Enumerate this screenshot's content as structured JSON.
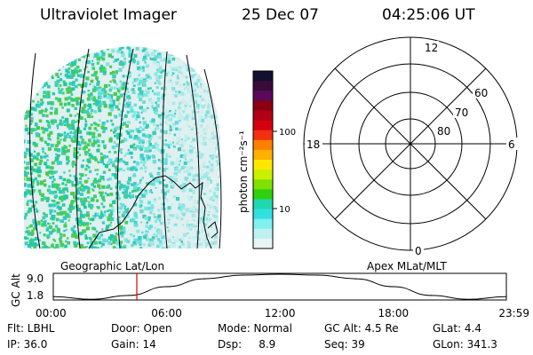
{
  "header": {
    "title": "Ultraviolet Imager",
    "date": "25 Dec 07",
    "time": "04:25:06 UT"
  },
  "colorbar": {
    "unit_label": "photon cm⁻²s⁻¹",
    "ticks": [
      "100",
      "10"
    ],
    "colors": [
      "#101030",
      "#3a0a3a",
      "#5a0a5a",
      "#8a0010",
      "#b00018",
      "#d40010",
      "#f03010",
      "#ff8000",
      "#ffb000",
      "#ffe800",
      "#c8f000",
      "#80e000",
      "#30d010",
      "#20d8b0",
      "#30e0e0",
      "#80f0f0",
      "#c0f0f0",
      "#e8f4f4"
    ]
  },
  "polar_plot": {
    "mlt_labels": {
      "top": "12",
      "left": "18",
      "right": "6",
      "bottom": "0"
    },
    "lat_labels": [
      "60",
      "70",
      "80"
    ]
  },
  "altitude_panel": {
    "left_label": "Geographic Lat/Lon",
    "right_label": "Apex MLat/MLT",
    "ylabel": "GC Alt",
    "yticks": [
      "9.0",
      "1.8"
    ],
    "xticks": [
      "00:00",
      "06:00",
      "12:00",
      "18:00",
      "23:59"
    ]
  },
  "chart_data": {
    "type": "line",
    "title": "",
    "xlabel": "",
    "ylabel": "GC Alt",
    "x": [
      0,
      2,
      4,
      6,
      8,
      10,
      12,
      14,
      16,
      18,
      20,
      22,
      23.98
    ],
    "values": [
      1.9,
      1.0,
      2.3,
      5.2,
      7.8,
      9.0,
      9.3,
      9.0,
      7.8,
      5.2,
      2.3,
      1.0,
      1.9
    ],
    "current_time_marker": 4.42,
    "xlim": [
      0,
      23.98
    ],
    "ylim": [
      0.8,
      9.6
    ]
  },
  "info": {
    "flt": "Flt: LBHL",
    "door": "Door: Open",
    "mode": "Mode: Normal",
    "gcalt": "GC Alt: 4.5 Re",
    "glat": "GLat:  4.4",
    "ip": "IP: 36.0",
    "gain": "Gain: 14",
    "dsp": "Dsp:     8.9",
    "seq": "Seq: 39",
    "glon": "GLon: 341.3"
  }
}
